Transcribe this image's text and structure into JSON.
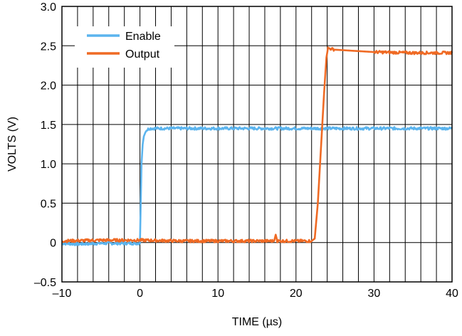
{
  "chart_data": {
    "type": "line",
    "xlabel": "TIME (µs)",
    "ylabel": "VOLTS (V)",
    "xlim": [
      -10,
      40
    ],
    "ylim": [
      -0.5,
      3.0
    ],
    "x_ticks": [
      -10,
      0,
      10,
      20,
      30,
      40
    ],
    "x_tick_labels": [
      "–10",
      "0",
      "10",
      "20",
      "30",
      "40"
    ],
    "y_ticks": [
      -0.5,
      0,
      0.5,
      1.0,
      1.5,
      2.0,
      2.5,
      3.0
    ],
    "y_tick_labels": [
      "–0.5",
      "0",
      "0.5",
      "1.0",
      "1.5",
      "2.0",
      "2.5",
      "3.0"
    ],
    "x_minor_step": 2,
    "y_minor_step": 0.5,
    "grid": true,
    "legend_position": "top-left",
    "series": [
      {
        "name": "Enable",
        "color": "#5bb4ee",
        "x": [
          -10,
          -8,
          -5,
          -2,
          0,
          0.1,
          0.2,
          0.35,
          0.5,
          0.7,
          0.9,
          1.2,
          2,
          5,
          10,
          15,
          20,
          25,
          30,
          35,
          40
        ],
        "y": [
          -0.01,
          -0.02,
          -0.01,
          -0.01,
          -0.01,
          0.5,
          1.0,
          1.25,
          1.35,
          1.4,
          1.43,
          1.45,
          1.45,
          1.45,
          1.45,
          1.45,
          1.45,
          1.45,
          1.45,
          1.45,
          1.45
        ]
      },
      {
        "name": "Output",
        "color": "#ef6a24",
        "x": [
          -10,
          -5,
          0,
          5,
          10,
          15,
          17.2,
          17.4,
          17.6,
          20,
          22,
          22.4,
          22.8,
          23.2,
          23.6,
          23.9,
          24.1,
          25,
          30,
          35,
          40
        ],
        "y": [
          0.02,
          0.03,
          0.03,
          0.02,
          0.02,
          0.02,
          0.02,
          0.1,
          0.02,
          0.02,
          0.02,
          0.05,
          0.5,
          1.2,
          1.9,
          2.35,
          2.47,
          2.45,
          2.42,
          2.41,
          2.41
        ]
      }
    ]
  }
}
